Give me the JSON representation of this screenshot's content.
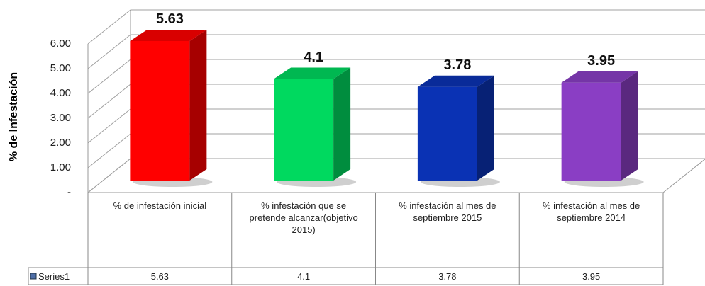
{
  "chart_data": {
    "type": "bar",
    "ylabel": "% de Infestación",
    "categories": [
      "% de infestación inicial",
      "% infestación que se pretende alcanzar(objetivo 2015)",
      "% infestación al mes de septiembre 2015",
      "% infestación al mes de septiembre 2014"
    ],
    "series": [
      {
        "name": "Series1",
        "color": "#4f6fa8",
        "colors": [
          "#ff0000",
          "#00d95f",
          "#0a32b4",
          "#8a3ec4"
        ],
        "values": [
          5.63,
          4.1,
          3.78,
          3.95
        ]
      }
    ],
    "ylim": [
      0,
      6
    ],
    "yticks": [
      {
        "value": 0,
        "label": "-"
      },
      {
        "value": 1,
        "label": "1.00"
      },
      {
        "value": 2,
        "label": "2.00"
      },
      {
        "value": 3,
        "label": "3.00"
      },
      {
        "value": 4,
        "label": "4.00"
      },
      {
        "value": 5,
        "label": "5.00"
      },
      {
        "value": 6,
        "label": "6.00"
      }
    ],
    "grid": true
  }
}
